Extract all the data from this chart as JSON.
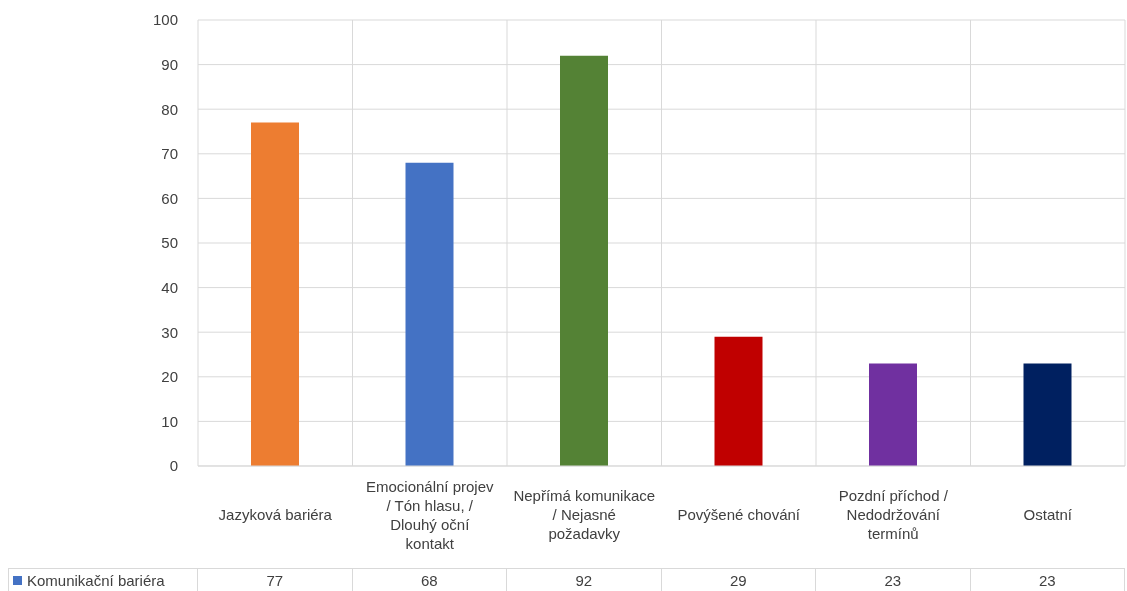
{
  "chart_data": {
    "type": "bar",
    "categories": [
      "Jazyková bariéra",
      "Emocionální projev / Tón hlasu, / Dlouhý oční kontakt",
      "Nepřímá komunikace / Nejasné požadavky",
      "Povýšené chování",
      "Pozdní příchod / Nedodržování termínů",
      "Ostatní"
    ],
    "series": [
      {
        "name": "Komunikační bariéra",
        "color": "#4472c4",
        "colors": [
          "#ed7d31",
          "#4472c4",
          "#548235",
          "#c00000",
          "#7030a0",
          "#002060"
        ],
        "values": [
          77,
          68,
          92,
          29,
          23,
          23
        ]
      }
    ],
    "ylim": [
      0,
      100
    ],
    "yticks": [
      0,
      10,
      20,
      30,
      40,
      50,
      60,
      70,
      80,
      90,
      100
    ],
    "grid": true,
    "data_labels": true,
    "legend": "bottom left"
  }
}
